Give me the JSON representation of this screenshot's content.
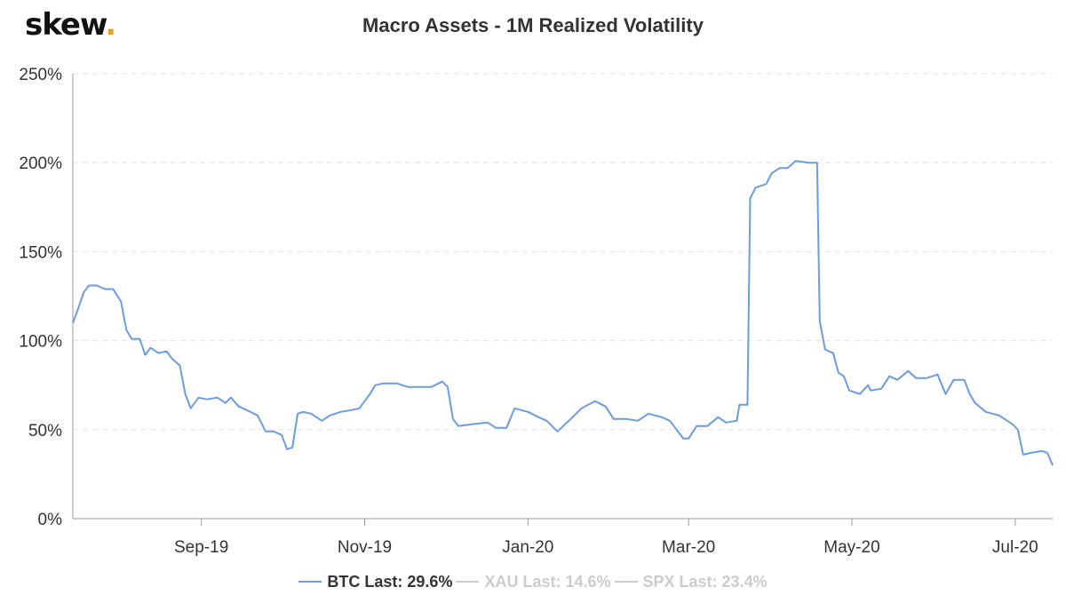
{
  "logo": {
    "text": "skew",
    "dot": "."
  },
  "chart_data": {
    "type": "line",
    "title": "Macro Assets - 1M Realized Volatility",
    "x_start": "2019-07-15",
    "x_end": "2020-07-15",
    "x_ticks": [
      {
        "label": "Sep-19",
        "date": "2019-09-01"
      },
      {
        "label": "Nov-19",
        "date": "2019-11-01"
      },
      {
        "label": "Jan-20",
        "date": "2020-01-01"
      },
      {
        "label": "Mar-20",
        "date": "2020-03-01"
      },
      {
        "label": "May-20",
        "date": "2020-05-01"
      },
      {
        "label": "Jul-20",
        "date": "2020-07-01"
      }
    ],
    "y_ticks": [
      {
        "label": "0%",
        "value": 0
      },
      {
        "label": "50%",
        "value": 50
      },
      {
        "label": "100%",
        "value": 100
      },
      {
        "label": "150%",
        "value": 150
      },
      {
        "label": "200%",
        "value": 200
      },
      {
        "label": "250%",
        "value": 250
      }
    ],
    "ylim": [
      0,
      250
    ],
    "grid": true,
    "series": [
      {
        "name": "BTC",
        "color": "#6d9be0",
        "points": [
          [
            "2019-07-15",
            110
          ],
          [
            "2019-07-17",
            118
          ],
          [
            "2019-07-19",
            127
          ],
          [
            "2019-07-21",
            131
          ],
          [
            "2019-07-24",
            131
          ],
          [
            "2019-07-27",
            129
          ],
          [
            "2019-07-30",
            129
          ],
          [
            "2019-08-02",
            122
          ],
          [
            "2019-08-04",
            106
          ],
          [
            "2019-08-06",
            101
          ],
          [
            "2019-08-09",
            101
          ],
          [
            "2019-08-11",
            92
          ],
          [
            "2019-08-13",
            96
          ],
          [
            "2019-08-16",
            93
          ],
          [
            "2019-08-19",
            94
          ],
          [
            "2019-08-21",
            90
          ],
          [
            "2019-08-24",
            86
          ],
          [
            "2019-08-26",
            70
          ],
          [
            "2019-08-28",
            62
          ],
          [
            "2019-08-31",
            68
          ],
          [
            "2019-09-03",
            67
          ],
          [
            "2019-09-07",
            68
          ],
          [
            "2019-09-10",
            65
          ],
          [
            "2019-09-12",
            68
          ],
          [
            "2019-09-15",
            63
          ],
          [
            "2019-09-18",
            61
          ],
          [
            "2019-09-22",
            58
          ],
          [
            "2019-09-25",
            49
          ],
          [
            "2019-09-28",
            49
          ],
          [
            "2019-10-01",
            47
          ],
          [
            "2019-10-03",
            39
          ],
          [
            "2019-10-05",
            40
          ],
          [
            "2019-10-07",
            59
          ],
          [
            "2019-10-09",
            60
          ],
          [
            "2019-10-12",
            59
          ],
          [
            "2019-10-16",
            55
          ],
          [
            "2019-10-19",
            58
          ],
          [
            "2019-10-23",
            60
          ],
          [
            "2019-10-27",
            61
          ],
          [
            "2019-10-30",
            62
          ],
          [
            "2019-11-01",
            66
          ],
          [
            "2019-11-03",
            70
          ],
          [
            "2019-11-05",
            75
          ],
          [
            "2019-11-08",
            76
          ],
          [
            "2019-11-13",
            76
          ],
          [
            "2019-11-17",
            74
          ],
          [
            "2019-11-22",
            74
          ],
          [
            "2019-11-26",
            74
          ],
          [
            "2019-11-30",
            77
          ],
          [
            "2019-12-02",
            74
          ],
          [
            "2019-12-04",
            56
          ],
          [
            "2019-12-06",
            52
          ],
          [
            "2019-12-11",
            53
          ],
          [
            "2019-12-17",
            54
          ],
          [
            "2019-12-20",
            51
          ],
          [
            "2019-12-24",
            51
          ],
          [
            "2019-12-27",
            62
          ],
          [
            "2020-01-01",
            60
          ],
          [
            "2020-01-05",
            57
          ],
          [
            "2020-01-08",
            55
          ],
          [
            "2020-01-12",
            49
          ],
          [
            "2020-01-17",
            56
          ],
          [
            "2020-01-21",
            62
          ],
          [
            "2020-01-26",
            66
          ],
          [
            "2020-01-30",
            63
          ],
          [
            "2020-02-02",
            56
          ],
          [
            "2020-02-07",
            56
          ],
          [
            "2020-02-11",
            55
          ],
          [
            "2020-02-15",
            59
          ],
          [
            "2020-02-20",
            57
          ],
          [
            "2020-02-23",
            55
          ],
          [
            "2020-02-25",
            51
          ],
          [
            "2020-02-28",
            45
          ],
          [
            "2020-03-01",
            45
          ],
          [
            "2020-03-04",
            52
          ],
          [
            "2020-03-08",
            52
          ],
          [
            "2020-03-12",
            57
          ],
          [
            "2020-03-15",
            54
          ],
          [
            "2020-03-19",
            55
          ],
          [
            "2020-03-20",
            64
          ],
          [
            "2020-03-23",
            64
          ],
          [
            "2020-03-24",
            180
          ],
          [
            "2020-03-26",
            186
          ],
          [
            "2020-03-30",
            188
          ],
          [
            "2020-04-01",
            194
          ],
          [
            "2020-04-04",
            197
          ],
          [
            "2020-04-07",
            197
          ],
          [
            "2020-04-10",
            201
          ],
          [
            "2020-04-15",
            200
          ],
          [
            "2020-04-18",
            200
          ],
          [
            "2020-04-19",
            111
          ],
          [
            "2020-04-21",
            95
          ],
          [
            "2020-04-24",
            93
          ],
          [
            "2020-04-26",
            82
          ],
          [
            "2020-04-28",
            80
          ],
          [
            "2020-04-30",
            72
          ],
          [
            "2020-05-04",
            70
          ],
          [
            "2020-05-07",
            75
          ],
          [
            "2020-05-08",
            72
          ],
          [
            "2020-05-12",
            73
          ],
          [
            "2020-05-15",
            80
          ],
          [
            "2020-05-18",
            78
          ],
          [
            "2020-05-22",
            83
          ],
          [
            "2020-05-25",
            79
          ],
          [
            "2020-05-29",
            79
          ],
          [
            "2020-06-02",
            81
          ],
          [
            "2020-06-05",
            70
          ],
          [
            "2020-06-08",
            78
          ],
          [
            "2020-06-12",
            78
          ],
          [
            "2020-06-14",
            70
          ],
          [
            "2020-06-16",
            65
          ],
          [
            "2020-06-20",
            60
          ],
          [
            "2020-06-25",
            58
          ],
          [
            "2020-06-30",
            53
          ],
          [
            "2020-07-02",
            50
          ],
          [
            "2020-07-04",
            36
          ],
          [
            "2020-07-07",
            37
          ],
          [
            "2020-07-11",
            38
          ],
          [
            "2020-07-13",
            37
          ],
          [
            "2020-07-15",
            30
          ]
        ]
      }
    ],
    "legend": [
      {
        "name": "BTC",
        "text": "BTC Last: 29.6%",
        "color": "#6d9be0",
        "active": true
      },
      {
        "name": "XAU",
        "text": "XAU Last: 14.6%",
        "color": "#cccccc",
        "active": false
      },
      {
        "name": "SPX",
        "text": "SPX Last: 23.4%",
        "color": "#cccccc",
        "active": false
      }
    ]
  }
}
